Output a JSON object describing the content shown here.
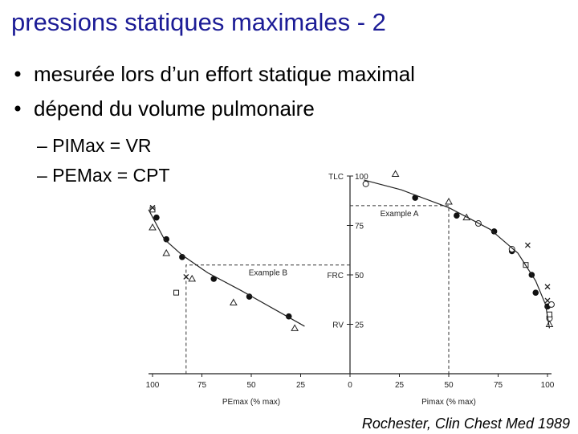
{
  "title": "pressions statiques maximales - 2",
  "bullets": [
    "mesurée lors d’un effort statique maximal",
    "dépend du volume pulmonaire"
  ],
  "sub_bullets": [
    "– PIMax = VR",
    "– PEMax = CPT"
  ],
  "citation": "Rochester, Clin Chest Med 1989",
  "chart_data": {
    "type": "scatter",
    "x_labels": [
      "PEmax (% max)",
      "Pimax (% max)"
    ],
    "xlim": [
      -100,
      100
    ],
    "ylim": [
      0,
      100
    ],
    "xticks": [
      {
        "value": -100,
        "label": "100"
      },
      {
        "value": -75,
        "label": "75"
      },
      {
        "value": -50,
        "label": "50"
      },
      {
        "value": -25,
        "label": "25"
      },
      0,
      25,
      50,
      75,
      100
    ],
    "yticks": [
      25,
      50,
      75,
      100
    ],
    "y_markers": [
      {
        "value": 100,
        "label": "TLC"
      },
      {
        "value": 50,
        "label": "FRC"
      },
      {
        "value": 25,
        "label": "RV"
      }
    ],
    "examples": [
      {
        "label": "Example A",
        "x": 50,
        "y": 85
      },
      {
        "label": "Example B",
        "x": -83,
        "y": 55
      }
    ],
    "series": [
      {
        "marker": "dot",
        "x": [
          -98,
          -93,
          -85,
          -69,
          -51,
          -31,
          33,
          54,
          73,
          82,
          92,
          94,
          100,
          101
        ],
        "y": [
          79,
          68,
          59,
          48,
          39,
          29,
          89,
          80,
          72,
          62,
          50,
          41,
          34,
          29
        ]
      },
      {
        "marker": "circle",
        "x": [
          8,
          65,
          82,
          102,
          101
        ],
        "y": [
          96,
          76,
          63,
          35,
          28
        ]
      },
      {
        "marker": "triangle",
        "x": [
          23,
          50,
          -100,
          -93,
          -80,
          -59,
          -28,
          59,
          101
        ],
        "y": [
          101,
          87,
          74,
          61,
          48,
          36,
          23,
          79,
          25
        ]
      },
      {
        "marker": "square",
        "x": [
          -100,
          -88,
          89,
          101
        ],
        "y": [
          83,
          41,
          55,
          30
        ]
      },
      {
        "marker": "cross",
        "x": [
          -100,
          -83,
          90,
          100,
          100
        ],
        "y": [
          84,
          49,
          65,
          44,
          37
        ]
      },
      {
        "marker": "line",
        "x": [
          -102,
          -94,
          -85,
          -72,
          -55,
          -39,
          -23
        ],
        "y": [
          83,
          68,
          60,
          51,
          42,
          33,
          24
        ]
      },
      {
        "marker": "line",
        "x": [
          7,
          26,
          50,
          71,
          85,
          94,
          99,
          101
        ],
        "y": [
          98,
          93,
          84,
          73,
          61,
          47,
          35,
          23
        ]
      }
    ]
  }
}
